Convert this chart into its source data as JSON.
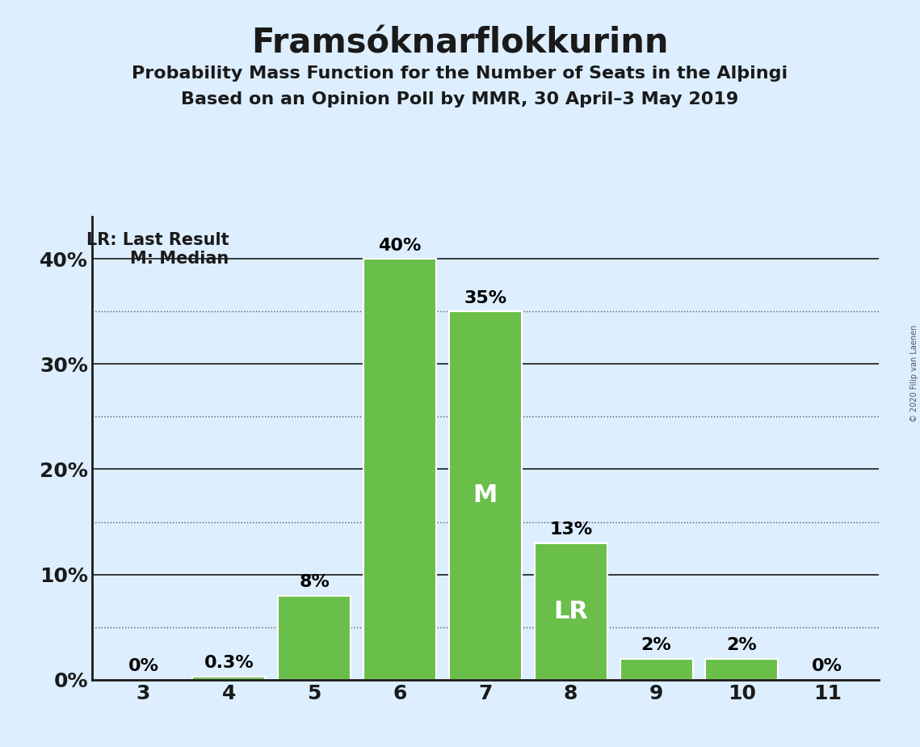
{
  "title": "Framsóknarflokkurinn",
  "subtitle1": "Probability Mass Function for the Number of Seats in the Alþingi",
  "subtitle2": "Based on an Opinion Poll by MMR, 30 April–3 May 2019",
  "categories": [
    3,
    4,
    5,
    6,
    7,
    8,
    9,
    10,
    11
  ],
  "values": [
    0.0,
    0.3,
    8.0,
    40.0,
    35.0,
    13.0,
    2.0,
    2.0,
    0.0
  ],
  "bar_color": "#6abf4b",
  "bar_edge_color": "white",
  "background_color": "#ddeeff",
  "label_above": [
    "0%",
    "0.3%",
    "8%",
    "40%",
    "35%",
    "13%",
    "2%",
    "2%",
    "0%"
  ],
  "label_inside": [
    "",
    "",
    "",
    "",
    "M",
    "LR",
    "",
    "",
    ""
  ],
  "ylim": [
    0,
    44
  ],
  "yticks_solid": [
    10,
    20,
    30,
    40
  ],
  "yticks_dotted": [
    5,
    15,
    25,
    35
  ],
  "ytick_vals": [
    0,
    10,
    20,
    30,
    40
  ],
  "ytick_labels": [
    "0%",
    "10%",
    "20%",
    "30%",
    "40%"
  ],
  "legend_lr": "LR: Last Result",
  "legend_m": "M: Median",
  "copyright": "© 2020 Filip van Laenen",
  "title_fontsize": 30,
  "subtitle_fontsize": 16,
  "axis_fontsize": 18,
  "label_above_fontsize": 16,
  "label_inside_fontsize": 22,
  "legend_fontsize": 15
}
